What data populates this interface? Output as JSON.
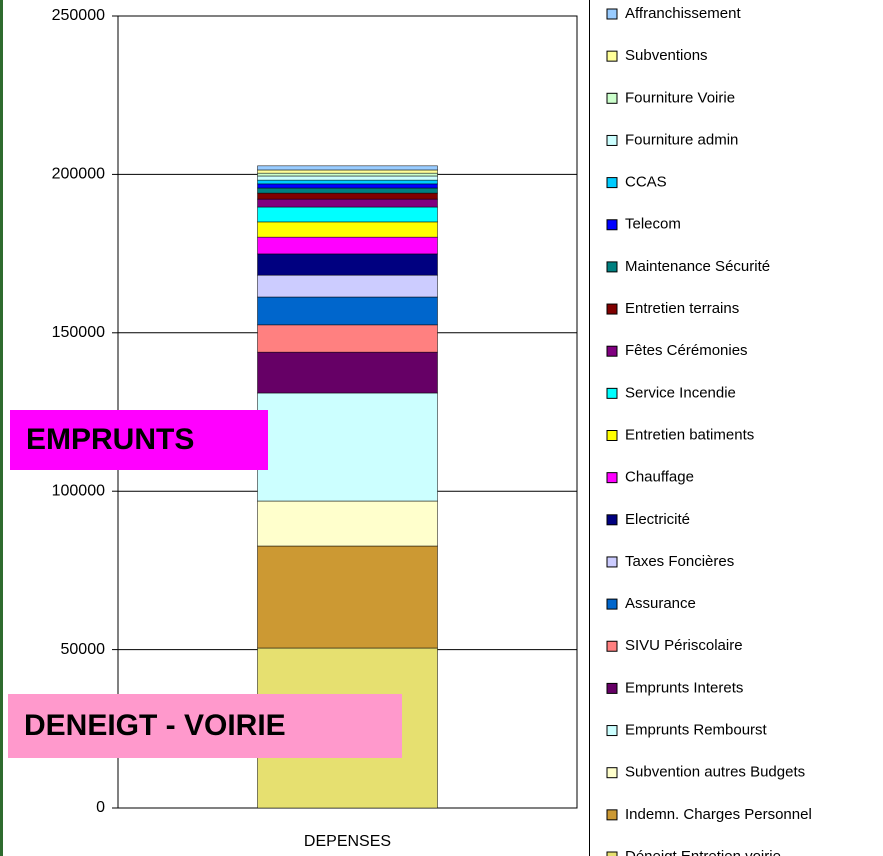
{
  "chart_data": {
    "type": "stacked_bar",
    "categories": [
      "DEPENSES"
    ],
    "series": [
      {
        "name": "Déneigt Entretien voirie",
        "color": "#e6e070",
        "values": [
          50500
        ]
      },
      {
        "name": "Indemn. Charges Personnel",
        "color": "#cc9933",
        "values": [
          32200
        ]
      },
      {
        "name": "Subvention autres Budgets",
        "color": "#ffffcc",
        "values": [
          14200
        ]
      },
      {
        "name": "Emprunts Rembourst",
        "color": "#ccffff",
        "values": [
          34100
        ]
      },
      {
        "name": "Emprunts Interets",
        "color": "#660066",
        "values": [
          12900
        ]
      },
      {
        "name": "SIVU Périscolaire",
        "color": "#ff8080",
        "values": [
          8600
        ]
      },
      {
        "name": "Assurance",
        "color": "#0066cc",
        "values": [
          8800
        ]
      },
      {
        "name": "Taxes Foncières",
        "color": "#ccccff",
        "values": [
          6900
        ]
      },
      {
        "name": "Electricité",
        "color": "#000080",
        "values": [
          6700
        ]
      },
      {
        "name": "Chauffage",
        "color": "#ff00ff",
        "values": [
          5300
        ]
      },
      {
        "name": "Entretien batiments",
        "color": "#ffff00",
        "values": [
          4800
        ]
      },
      {
        "name": "Service Incendie",
        "color": "#00ffff",
        "values": [
          4700
        ]
      },
      {
        "name": "Fêtes Cérémonies",
        "color": "#800080",
        "values": [
          2500
        ]
      },
      {
        "name": "Entretien terrains",
        "color": "#800000",
        "values": [
          1900
        ]
      },
      {
        "name": "Maintenance Sécurité",
        "color": "#008080",
        "values": [
          1600
        ]
      },
      {
        "name": "Telecom",
        "color": "#0000ff",
        "values": [
          1300
        ]
      },
      {
        "name": "CCAS",
        "color": "#00ccff",
        "values": [
          1200
        ]
      },
      {
        "name": "Fourniture admin",
        "color": "#ccffff",
        "values": [
          1300
        ]
      },
      {
        "name": "Fourniture Voirie",
        "color": "#ccffcc",
        "values": [
          900
        ]
      },
      {
        "name": "Subventions",
        "color": "#ffff99",
        "values": [
          1000
        ]
      },
      {
        "name": "Affranchissement",
        "color": "#99ccff",
        "values": [
          1300
        ]
      }
    ],
    "ylim": [
      0,
      250000
    ],
    "yticks": [
      0,
      50000,
      100000,
      150000,
      200000,
      250000
    ],
    "grid": true,
    "annotations": [
      "EMPRUNTS",
      "DENEIGT - VOIRIE"
    ]
  }
}
